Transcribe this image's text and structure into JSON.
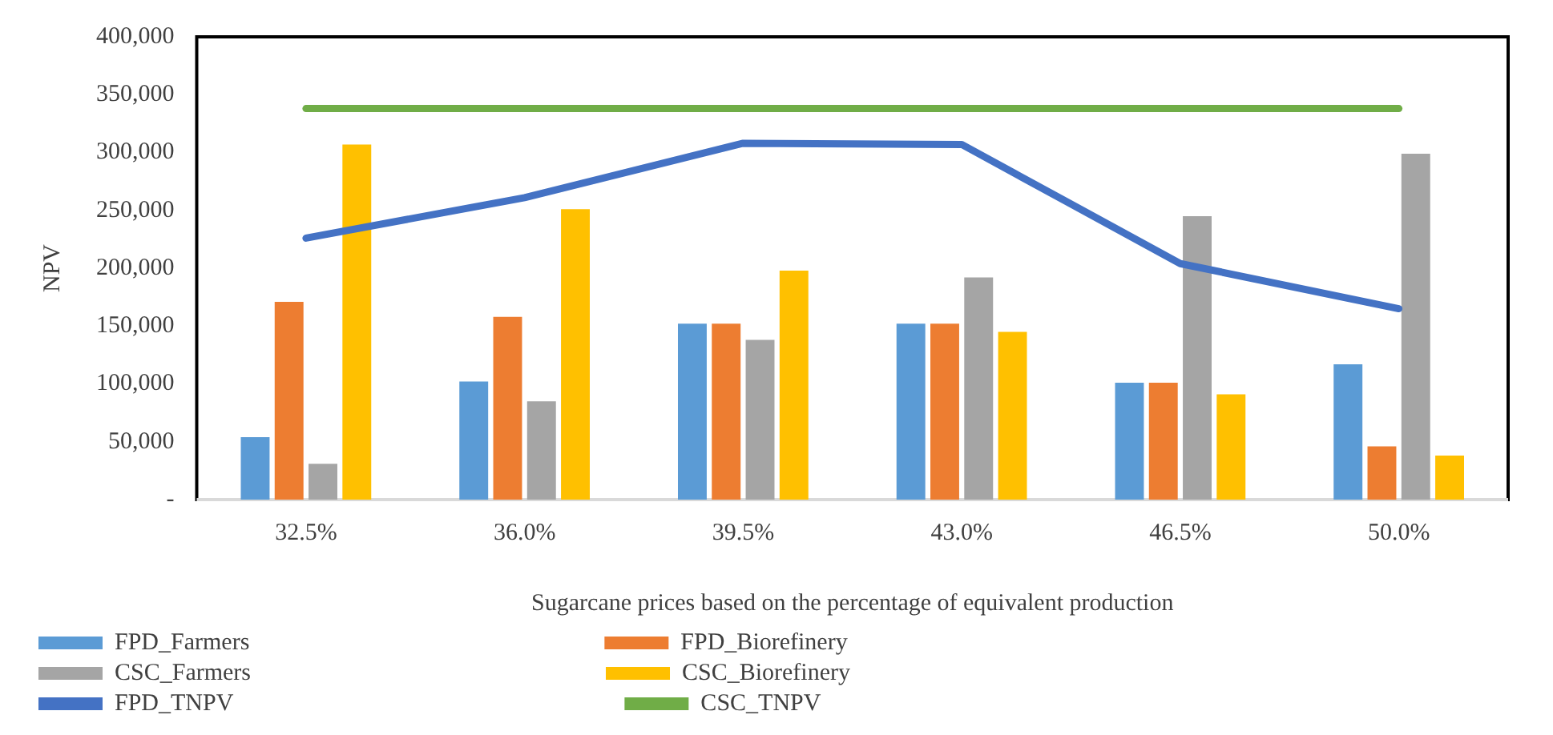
{
  "chart_data": {
    "type": "bar",
    "xlabel": "Sugarcane prices based on the percentage of equivalent production",
    "ylabel": "NPV",
    "categories": [
      "32.5%",
      "36.0%",
      "39.5%",
      "43.0%",
      "46.5%",
      "50.0%"
    ],
    "series": [
      {
        "name": "FPD_Farmers",
        "color": "#5b9bd5",
        "values": [
          54000,
          102000,
          152000,
          152000,
          101000,
          117000
        ]
      },
      {
        "name": "FPD_Biorefinery",
        "color": "#ed7d31",
        "values": [
          171000,
          158000,
          152000,
          152000,
          101000,
          46000
        ]
      },
      {
        "name": "CSC_Farmers",
        "color": "#a5a5a5",
        "values": [
          31000,
          85000,
          138000,
          192000,
          245000,
          299000
        ]
      },
      {
        "name": "CSC_Biorefinery",
        "color": "#ffc000",
        "values": [
          307000,
          251000,
          198000,
          145000,
          91000,
          38000
        ]
      },
      {
        "name": "FPD_TNPV",
        "type": "line",
        "color": "#4472c4",
        "values": [
          226000,
          261000,
          308000,
          307000,
          204000,
          165000
        ]
      },
      {
        "name": "CSC_TNPV",
        "type": "line",
        "color": "#70ad47",
        "values": [
          338000,
          338000,
          338000,
          338000,
          338000,
          338000
        ]
      }
    ],
    "ylim": [
      0,
      400000
    ],
    "yticks": [
      {
        "value": 0,
        "label": "-"
      },
      {
        "value": 50000,
        "label": "50,000"
      },
      {
        "value": 100000,
        "label": "100,000"
      },
      {
        "value": 150000,
        "label": "150,000"
      },
      {
        "value": 200000,
        "label": "200,000"
      },
      {
        "value": 250000,
        "label": "250,000"
      },
      {
        "value": 300000,
        "label": "300,000"
      },
      {
        "value": 350000,
        "label": "350,000"
      },
      {
        "value": 400000,
        "label": "400,000"
      }
    ],
    "grid": false,
    "legend": "bottom",
    "marker": "none"
  }
}
